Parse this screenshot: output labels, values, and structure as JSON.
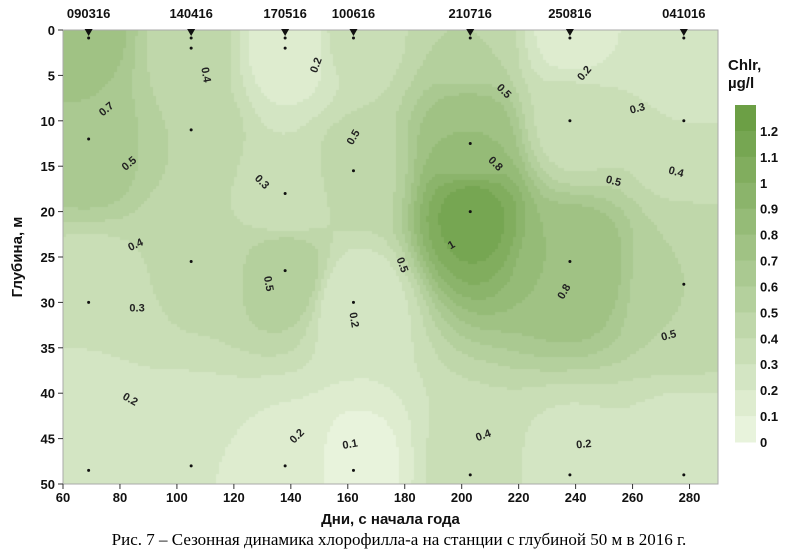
{
  "chart_data": {
    "type": "heatmap",
    "subtype": "filled-contour",
    "xlabel": "Дни, с начала года",
    "ylabel": "Глубина, м",
    "xlim": [
      60,
      290
    ],
    "ylim": [
      0,
      50
    ],
    "xticks": [
      60,
      80,
      100,
      120,
      140,
      160,
      180,
      200,
      220,
      240,
      260,
      280
    ],
    "yticks": [
      0,
      5,
      10,
      15,
      20,
      25,
      30,
      35,
      40,
      45,
      50
    ],
    "colorbar": {
      "title": "Chlr,",
      "unit": "µg/l",
      "ticks": [
        "1.2",
        "1.1",
        "1",
        "0.9",
        "0.8",
        "0.7",
        "0.6",
        "0.5",
        "0.4",
        "0.3",
        "0.2",
        "0.1",
        "0"
      ],
      "min": 0,
      "max": 1.3,
      "color_low": "#e8f3dc",
      "color_high": "#6c9f45"
    },
    "stations": [
      {
        "label": "090316",
        "day": 69,
        "depths": [
          0,
          12,
          30,
          48.5
        ],
        "values": [
          0.75,
          0.7,
          0.3,
          0.2
        ]
      },
      {
        "label": "140416",
        "day": 105,
        "depths": [
          0,
          2,
          11,
          25.5,
          48
        ],
        "values": [
          0.45,
          0.45,
          0.5,
          0.42,
          0.2
        ]
      },
      {
        "label": "170516",
        "day": 138,
        "depths": [
          0,
          2,
          18,
          26.5,
          48
        ],
        "values": [
          0.1,
          0.15,
          0.3,
          0.58,
          0.18
        ]
      },
      {
        "label": "100616",
        "day": 162,
        "depths": [
          0,
          15.5,
          30,
          48.5
        ],
        "values": [
          0.35,
          0.45,
          0.2,
          0.05
        ]
      },
      {
        "label": "210716",
        "day": 203,
        "depths": [
          0,
          12.5,
          20,
          49
        ],
        "values": [
          0.5,
          0.8,
          1.15,
          0.35
        ]
      },
      {
        "label": "250816",
        "day": 238,
        "depths": [
          0,
          10,
          25.5,
          49
        ],
        "values": [
          0.15,
          0.35,
          0.8,
          0.25
        ]
      },
      {
        "label": "041016",
        "day": 278,
        "depths": [
          0,
          10,
          28,
          49
        ],
        "values": [
          0.25,
          0.3,
          0.5,
          0.2
        ]
      }
    ],
    "contour_labels": [
      {
        "text": "0.7",
        "day": 76,
        "depth": 9,
        "rot": -40
      },
      {
        "text": "0.5",
        "day": 84,
        "depth": 15,
        "rot": -40
      },
      {
        "text": "0.4",
        "day": 86,
        "depth": 24,
        "rot": -25
      },
      {
        "text": "0.3",
        "day": 86,
        "depth": 31,
        "rot": 0
      },
      {
        "text": "0.2",
        "day": 83,
        "depth": 41,
        "rot": 30
      },
      {
        "text": "0.4",
        "day": 109,
        "depth": 5,
        "rot": 80
      },
      {
        "text": "0.2",
        "day": 150,
        "depth": 4,
        "rot": -70
      },
      {
        "text": "0.3",
        "day": 129,
        "depth": 17,
        "rot": 45
      },
      {
        "text": "0.5",
        "day": 131,
        "depth": 28,
        "rot": 80
      },
      {
        "text": "0.5",
        "day": 163,
        "depth": 12,
        "rot": -60
      },
      {
        "text": "0.2",
        "day": 161,
        "depth": 32,
        "rot": 80
      },
      {
        "text": "0.2",
        "day": 143,
        "depth": 45,
        "rot": -45
      },
      {
        "text": "0.1",
        "day": 161,
        "depth": 46,
        "rot": -10
      },
      {
        "text": "0.5",
        "day": 178,
        "depth": 26,
        "rot": 70
      },
      {
        "text": "0.5",
        "day": 214,
        "depth": 7,
        "rot": 45
      },
      {
        "text": "0.8",
        "day": 211,
        "depth": 15,
        "rot": 45
      },
      {
        "text": "1",
        "day": 197,
        "depth": 24,
        "rot": -30
      },
      {
        "text": "0.8",
        "day": 237,
        "depth": 29,
        "rot": -60
      },
      {
        "text": "0.5",
        "day": 253,
        "depth": 17,
        "rot": 15
      },
      {
        "text": "0.2",
        "day": 244,
        "depth": 5,
        "rot": -50
      },
      {
        "text": "0.3",
        "day": 262,
        "depth": 9,
        "rot": -15
      },
      {
        "text": "0.4",
        "day": 275,
        "depth": 16,
        "rot": 15
      },
      {
        "text": "0.5",
        "day": 273,
        "depth": 34,
        "rot": -15
      },
      {
        "text": "0.4",
        "day": 208,
        "depth": 45,
        "rot": -20
      },
      {
        "text": "0.2",
        "day": 243,
        "depth": 46,
        "rot": -5
      }
    ]
  },
  "caption": "Рис. 7 – Сезонная динамика хлорофилла-а на станции с глубиной 50 м в 2016 г."
}
